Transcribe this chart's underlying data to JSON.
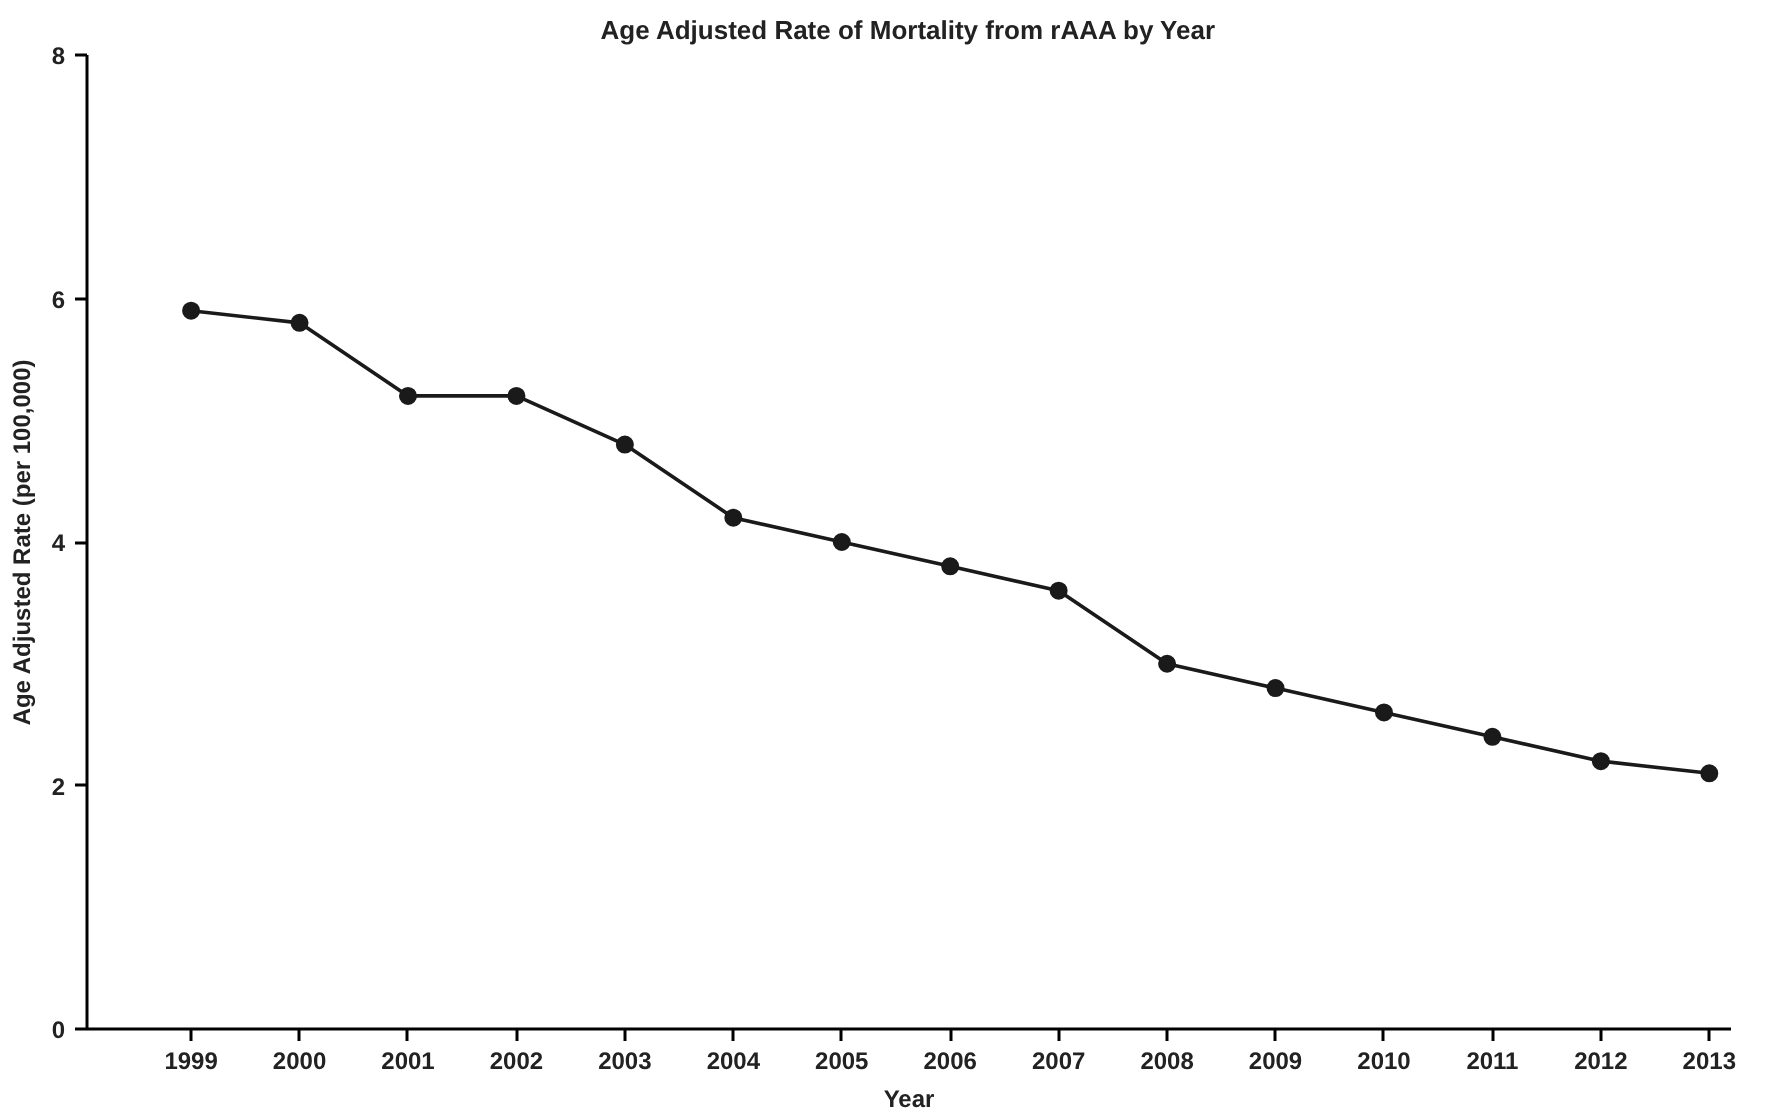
{
  "chart_data": {
    "type": "line",
    "title": "Age Adjusted Rate of Mortality from rAAA by Year",
    "xlabel": "Year",
    "ylabel": "Age Adjusted Rate (per 100,000)",
    "categories": [
      "1999",
      "2000",
      "2001",
      "2002",
      "2003",
      "2004",
      "2005",
      "2006",
      "2007",
      "2008",
      "2009",
      "2010",
      "2011",
      "2012",
      "2013"
    ],
    "series": [
      {
        "color": "#1a1a1a",
        "values": [
          5.9,
          5.8,
          5.2,
          5.2,
          4.8,
          4.2,
          4.0,
          3.8,
          3.6,
          3.0,
          2.8,
          2.6,
          2.4,
          2.2,
          2.1
        ]
      }
    ],
    "ylim": [
      0,
      8
    ],
    "yticks": [
      0,
      2,
      4,
      6,
      8
    ],
    "grid": false,
    "marker": "circle",
    "line_style": "solid"
  }
}
